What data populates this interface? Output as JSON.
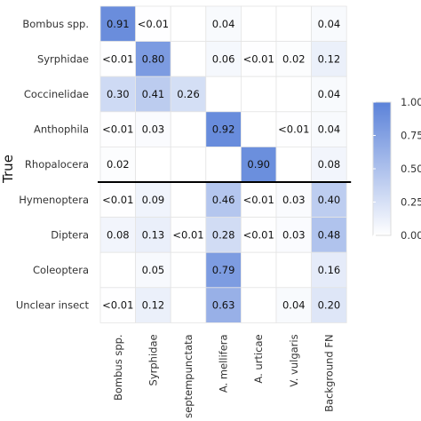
{
  "chart_data": {
    "type": "heatmap",
    "ylabel": "True",
    "xlabel": "",
    "rows": [
      "Bombus spp.",
      "Syrphidae",
      "Coccinelidae",
      "Anthophila",
      "Rhopalocera",
      "Hymenoptera",
      "Diptera",
      "Coleoptera",
      "Unclear insect"
    ],
    "columns": [
      "Bombus spp.",
      "Syrphidae",
      "C. septempunctata",
      "A. mellifera",
      "A. urticae",
      "V. vulgaris",
      "Background FN"
    ],
    "values": [
      [
        0.91,
        0.005,
        null,
        0.04,
        null,
        null,
        0.04
      ],
      [
        0.005,
        0.8,
        null,
        0.06,
        0.005,
        0.02,
        0.12
      ],
      [
        0.3,
        0.41,
        0.26,
        null,
        null,
        null,
        0.04
      ],
      [
        0.005,
        0.03,
        null,
        0.92,
        null,
        0.005,
        0.04
      ],
      [
        0.02,
        null,
        null,
        null,
        0.9,
        null,
        0.08
      ],
      [
        0.005,
        0.09,
        null,
        0.46,
        0.005,
        0.03,
        0.4
      ],
      [
        0.08,
        0.13,
        0.005,
        0.28,
        0.005,
        0.03,
        0.48
      ],
      [
        null,
        0.05,
        null,
        0.79,
        null,
        null,
        0.16
      ],
      [
        0.005,
        0.12,
        null,
        0.63,
        null,
        0.04,
        0.2
      ]
    ],
    "labels": [
      [
        "0.91",
        "<0.01",
        "",
        "0.04",
        "",
        "",
        "0.04"
      ],
      [
        "<0.01",
        "0.80",
        "",
        "0.06",
        "<0.01",
        "0.02",
        "0.12"
      ],
      [
        "0.30",
        "0.41",
        "0.26",
        "",
        "",
        "",
        "0.04"
      ],
      [
        "<0.01",
        "0.03",
        "",
        "0.92",
        "",
        "<0.01",
        "0.04"
      ],
      [
        "0.02",
        "",
        "",
        "",
        "0.90",
        "",
        "0.08"
      ],
      [
        "<0.01",
        "0.09",
        "",
        "0.46",
        "<0.01",
        "0.03",
        "0.40"
      ],
      [
        "0.08",
        "0.13",
        "<0.01",
        "0.28",
        "<0.01",
        "0.03",
        "0.48"
      ],
      [
        "",
        "0.05",
        "",
        "0.79",
        "",
        "",
        "0.16"
      ],
      [
        "<0.01",
        "0.12",
        "",
        "0.63",
        "",
        "0.04",
        "0.20"
      ]
    ],
    "separator_after_row": 4,
    "color_scale": {
      "low": "#ffffff",
      "high": "#5b82d9",
      "range": [
        0,
        1
      ]
    },
    "legend": {
      "position": "right",
      "ticks": [
        1.0,
        0.75,
        0.5,
        0.25,
        0.0
      ],
      "tick_labels": [
        "1.00",
        "0.75",
        "0.50",
        "0.25",
        "0.00"
      ]
    }
  }
}
